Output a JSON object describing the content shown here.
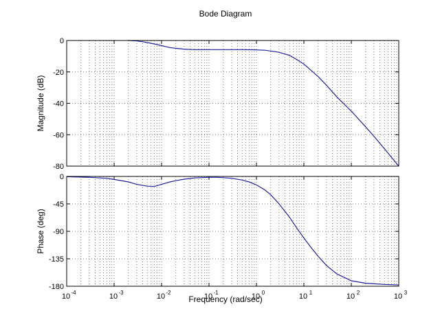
{
  "figure": {
    "title": "Bode Diagram",
    "xlabel": "Frequency  (rad/sec)"
  },
  "colors": {
    "background": "#ffffff",
    "axes": "#000000",
    "grid": "#555555",
    "line": "#1f1f9f"
  },
  "chart_data": [
    {
      "type": "line",
      "panel": "magnitude",
      "xscale": "log",
      "xlim": [
        0.0001,
        1000
      ],
      "ylim": [
        -80,
        0
      ],
      "yticks": [
        0,
        -20,
        -40,
        -60,
        -80
      ],
      "ytick_labels": [
        "0",
        "-20",
        "-40",
        "-60",
        "-80"
      ],
      "ylabel": "Magnitude (dB)",
      "grid": true,
      "series": [
        {
          "x": [
            0.002,
            0.003,
            0.004,
            0.005,
            0.007,
            0.01,
            0.015,
            0.02,
            0.03,
            0.05,
            0.1,
            0.2,
            0.5,
            1,
            1.5,
            2,
            3,
            5,
            7,
            10,
            20,
            30,
            50,
            100,
            200,
            300,
            500,
            1000
          ],
          "y": [
            0,
            -0.3,
            -0.8,
            -1.3,
            -2.2,
            -3.3,
            -4.5,
            -5.0,
            -5.5,
            -5.8,
            -5.8,
            -5.8,
            -5.8,
            -6.0,
            -6.2,
            -6.7,
            -7.5,
            -9.5,
            -12,
            -15,
            -23,
            -28.5,
            -36,
            -45,
            -55,
            -61,
            -69,
            -80
          ]
        }
      ]
    },
    {
      "type": "line",
      "panel": "phase",
      "xscale": "log",
      "xlim": [
        0.0001,
        1000
      ],
      "ylim": [
        -180,
        0
      ],
      "yticks": [
        0,
        -45,
        -90,
        -135,
        -180
      ],
      "ytick_labels": [
        "0",
        "-45",
        "-90",
        "-135",
        "-180"
      ],
      "ylabel": "Phase (deg)",
      "xticks": [
        0.0001,
        0.001,
        0.01,
        0.1,
        1,
        10,
        100,
        1000
      ],
      "xtick_exponents": [
        "-4",
        "-3",
        "-2",
        "-1",
        "0",
        "1",
        "2",
        "3"
      ],
      "grid": true,
      "series": [
        {
          "x": [
            0.0001,
            0.0003,
            0.0007,
            0.001,
            0.002,
            0.003,
            0.005,
            0.007,
            0.01,
            0.015,
            0.02,
            0.03,
            0.05,
            0.1,
            0.15,
            0.2,
            0.3,
            0.5,
            0.7,
            1,
            1.5,
            2,
            3,
            5,
            7,
            10,
            15,
            20,
            30,
            50,
            100,
            200,
            300,
            500,
            1000
          ],
          "y": [
            -0.5,
            -1.5,
            -3,
            -5,
            -9,
            -13,
            -16,
            -16.5,
            -13,
            -9,
            -7,
            -4.5,
            -2.5,
            -1.5,
            -1.5,
            -2,
            -3,
            -6,
            -9,
            -14,
            -22,
            -30,
            -45,
            -67,
            -84,
            -101,
            -119,
            -131,
            -146,
            -160,
            -171,
            -175,
            -176,
            -177,
            -178
          ]
        }
      ]
    }
  ]
}
